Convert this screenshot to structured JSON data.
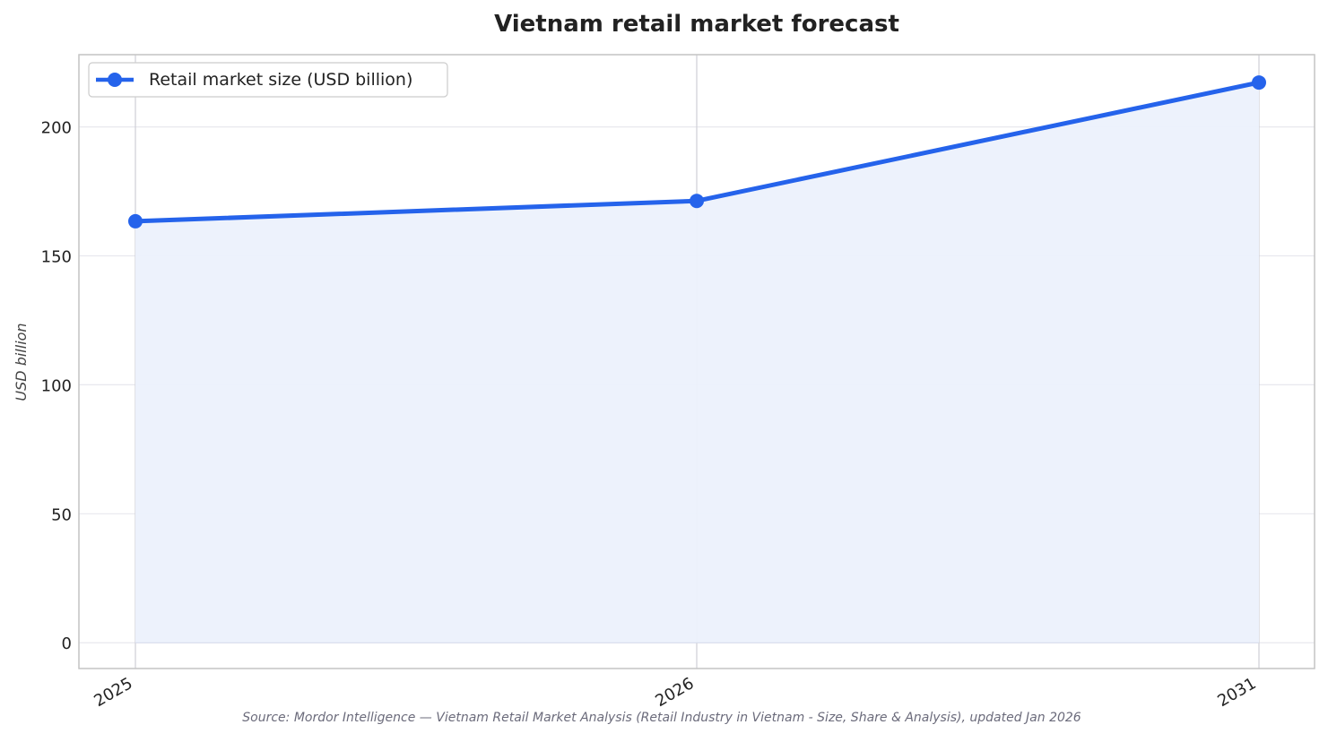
{
  "chart_data": {
    "type": "line",
    "title": "Vietnam retail market forecast",
    "xlabel": "",
    "ylabel": "USD billion",
    "categories": [
      "2025",
      "2026",
      "2031"
    ],
    "series": [
      {
        "name": "Retail market size (USD billion)",
        "values": [
          163.4,
          171.3,
          217.2
        ],
        "color": "#2563eb",
        "fill_color": "#ecf1fc"
      }
    ],
    "ylim": [
      -10,
      228
    ],
    "yticks": [
      0,
      50,
      100,
      150,
      200
    ],
    "grid": true,
    "legend_position": "top-left",
    "source": "Source: Mordor Intelligence — Vietnam Retail Market Analysis (Retail Industry in Vietnam - Size, Share & Analysis), updated Jan 2026"
  }
}
